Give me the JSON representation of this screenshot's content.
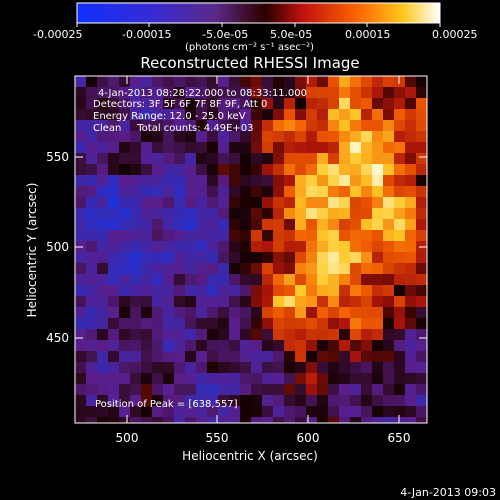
{
  "colorbar": {
    "tick_labels": [
      "-0.00025",
      "-0.00015",
      "-5.0e-05",
      "5.0e-05",
      "0.00015",
      "0.00025"
    ],
    "units": "(photons cm⁻² s⁻¹ asec⁻²)",
    "min": -0.00025,
    "max": 0.00025
  },
  "plot": {
    "title": "Reconstructed RHESSI Image",
    "xlabel": "Heliocentric X (arcsec)",
    "ylabel": "Heliocentric Y (arcsec)",
    "x_ticks": [
      "500",
      "550",
      "600",
      "650"
    ],
    "y_ticks": [
      "550",
      "500",
      "450"
    ],
    "x_range": [
      470,
      663
    ],
    "y_range": [
      400,
      580
    ]
  },
  "info": {
    "time_range": "4-Jan-2013 08:28:22.000 to 08:33:11.000",
    "detectors": "Detectors: 3F 5F 6F 7F 8F 9F, Att 0",
    "energy": "Energy Range: 12.0 - 25.0 keV",
    "clean": "Clean     Total counts: 4.49E+03",
    "peak": "Position of Peak = [638,557]"
  },
  "timestamp": "4-Jan-2013 09:03"
}
